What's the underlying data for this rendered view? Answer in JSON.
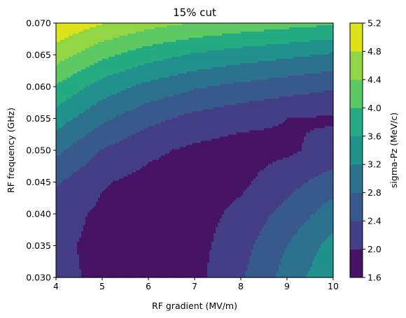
{
  "chart_data": {
    "type": "heatmap",
    "subtype": "filled-contour",
    "title": "15% cut",
    "xlabel": "RF gradient (MV/m)",
    "ylabel": "RF frequency (GHz)",
    "colorbar_label": "sigma-Pz (MeV/c)",
    "xlim": [
      4,
      10
    ],
    "ylim": [
      0.03,
      0.07
    ],
    "x_ticks": [
      "4",
      "5",
      "6",
      "7",
      "8",
      "9",
      "10"
    ],
    "y_ticks": [
      "0.030",
      "0.035",
      "0.040",
      "0.045",
      "0.050",
      "0.055",
      "0.060",
      "0.065",
      "0.070"
    ],
    "levels": [
      1.6,
      2.0,
      2.4,
      2.8,
      3.2,
      3.6,
      4.0,
      4.4,
      4.8,
      5.2
    ],
    "level_labels": [
      "1.6",
      "2.0",
      "2.4",
      "2.8",
      "3.2",
      "3.6",
      "4.0",
      "4.4",
      "4.8",
      "5.2"
    ],
    "level_colors": [
      "#471365",
      "#433e85",
      "#38598c",
      "#2c728e",
      "#21918c",
      "#25ab82",
      "#5ec962",
      "#90d743",
      "#dde318"
    ],
    "field": {
      "x": [
        4,
        5,
        6,
        7,
        8,
        9,
        10
      ],
      "y": [
        0.03,
        0.035,
        0.04,
        0.045,
        0.05,
        0.055,
        0.06,
        0.065,
        0.07
      ],
      "z": [
        [
          2.1,
          1.92,
          1.85,
          1.88,
          2.35,
          2.95,
          3.55
        ],
        [
          2.08,
          1.9,
          1.83,
          1.86,
          2.25,
          2.8,
          3.35
        ],
        [
          2.15,
          1.93,
          1.84,
          1.84,
          2.1,
          2.55,
          3.0
        ],
        [
          2.45,
          2.03,
          1.88,
          1.83,
          1.92,
          2.25,
          2.6
        ],
        [
          2.9,
          2.38,
          2.08,
          1.92,
          1.84,
          1.93,
          2.15
        ],
        [
          3.4,
          2.88,
          2.52,
          2.28,
          2.12,
          2.0,
          1.95
        ],
        [
          3.95,
          3.42,
          3.08,
          2.85,
          2.7,
          2.58,
          2.45
        ],
        [
          4.6,
          4.1,
          3.78,
          3.55,
          3.4,
          3.28,
          3.15
        ],
        [
          5.15,
          4.82,
          4.55,
          4.38,
          4.25,
          4.15,
          4.05
        ]
      ]
    },
    "grid": false,
    "legend": "colorbar-right"
  }
}
